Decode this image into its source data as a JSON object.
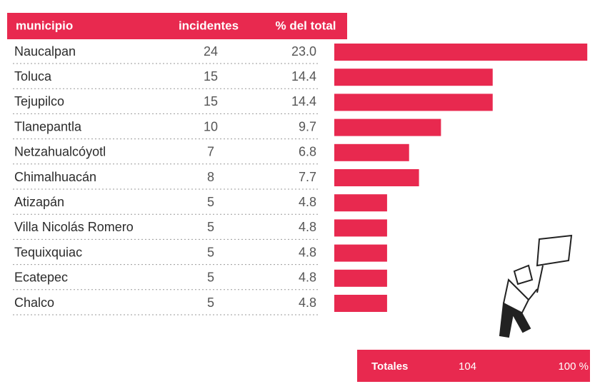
{
  "header": {
    "municipio": "municipio",
    "incidentes": "incidentes",
    "porcentaje": "% del total"
  },
  "rows": [
    {
      "municipio": "Naucalpan",
      "incidentes": "24",
      "porcentaje": "23.0"
    },
    {
      "municipio": "Toluca",
      "incidentes": "15",
      "porcentaje": "14.4"
    },
    {
      "municipio": "Tejupilco",
      "incidentes": "15",
      "porcentaje": "14.4"
    },
    {
      "municipio": "Tlanepantla",
      "incidentes": "10",
      "porcentaje": "9.7"
    },
    {
      "municipio": "Netzahualcóyotl",
      "incidentes": "7",
      "porcentaje": "6.8"
    },
    {
      "municipio": "Chimalhuacán",
      "incidentes": "8",
      "porcentaje": "7.7"
    },
    {
      "municipio": "Atizapán",
      "incidentes": "5",
      "porcentaje": "4.8"
    },
    {
      "municipio": "Villa Nicolás Romero",
      "incidentes": "5",
      "porcentaje": "4.8"
    },
    {
      "municipio": "Tequixquiac",
      "incidentes": "5",
      "porcentaje": "4.8"
    },
    {
      "municipio": "Ecatepec",
      "incidentes": "5",
      "porcentaje": "4.8"
    },
    {
      "municipio": "Chalco",
      "incidentes": "5",
      "porcentaje": "4.8"
    }
  ],
  "totals": {
    "label": "Totales",
    "incidentes": "104",
    "porcentaje": "100 %"
  }
}
